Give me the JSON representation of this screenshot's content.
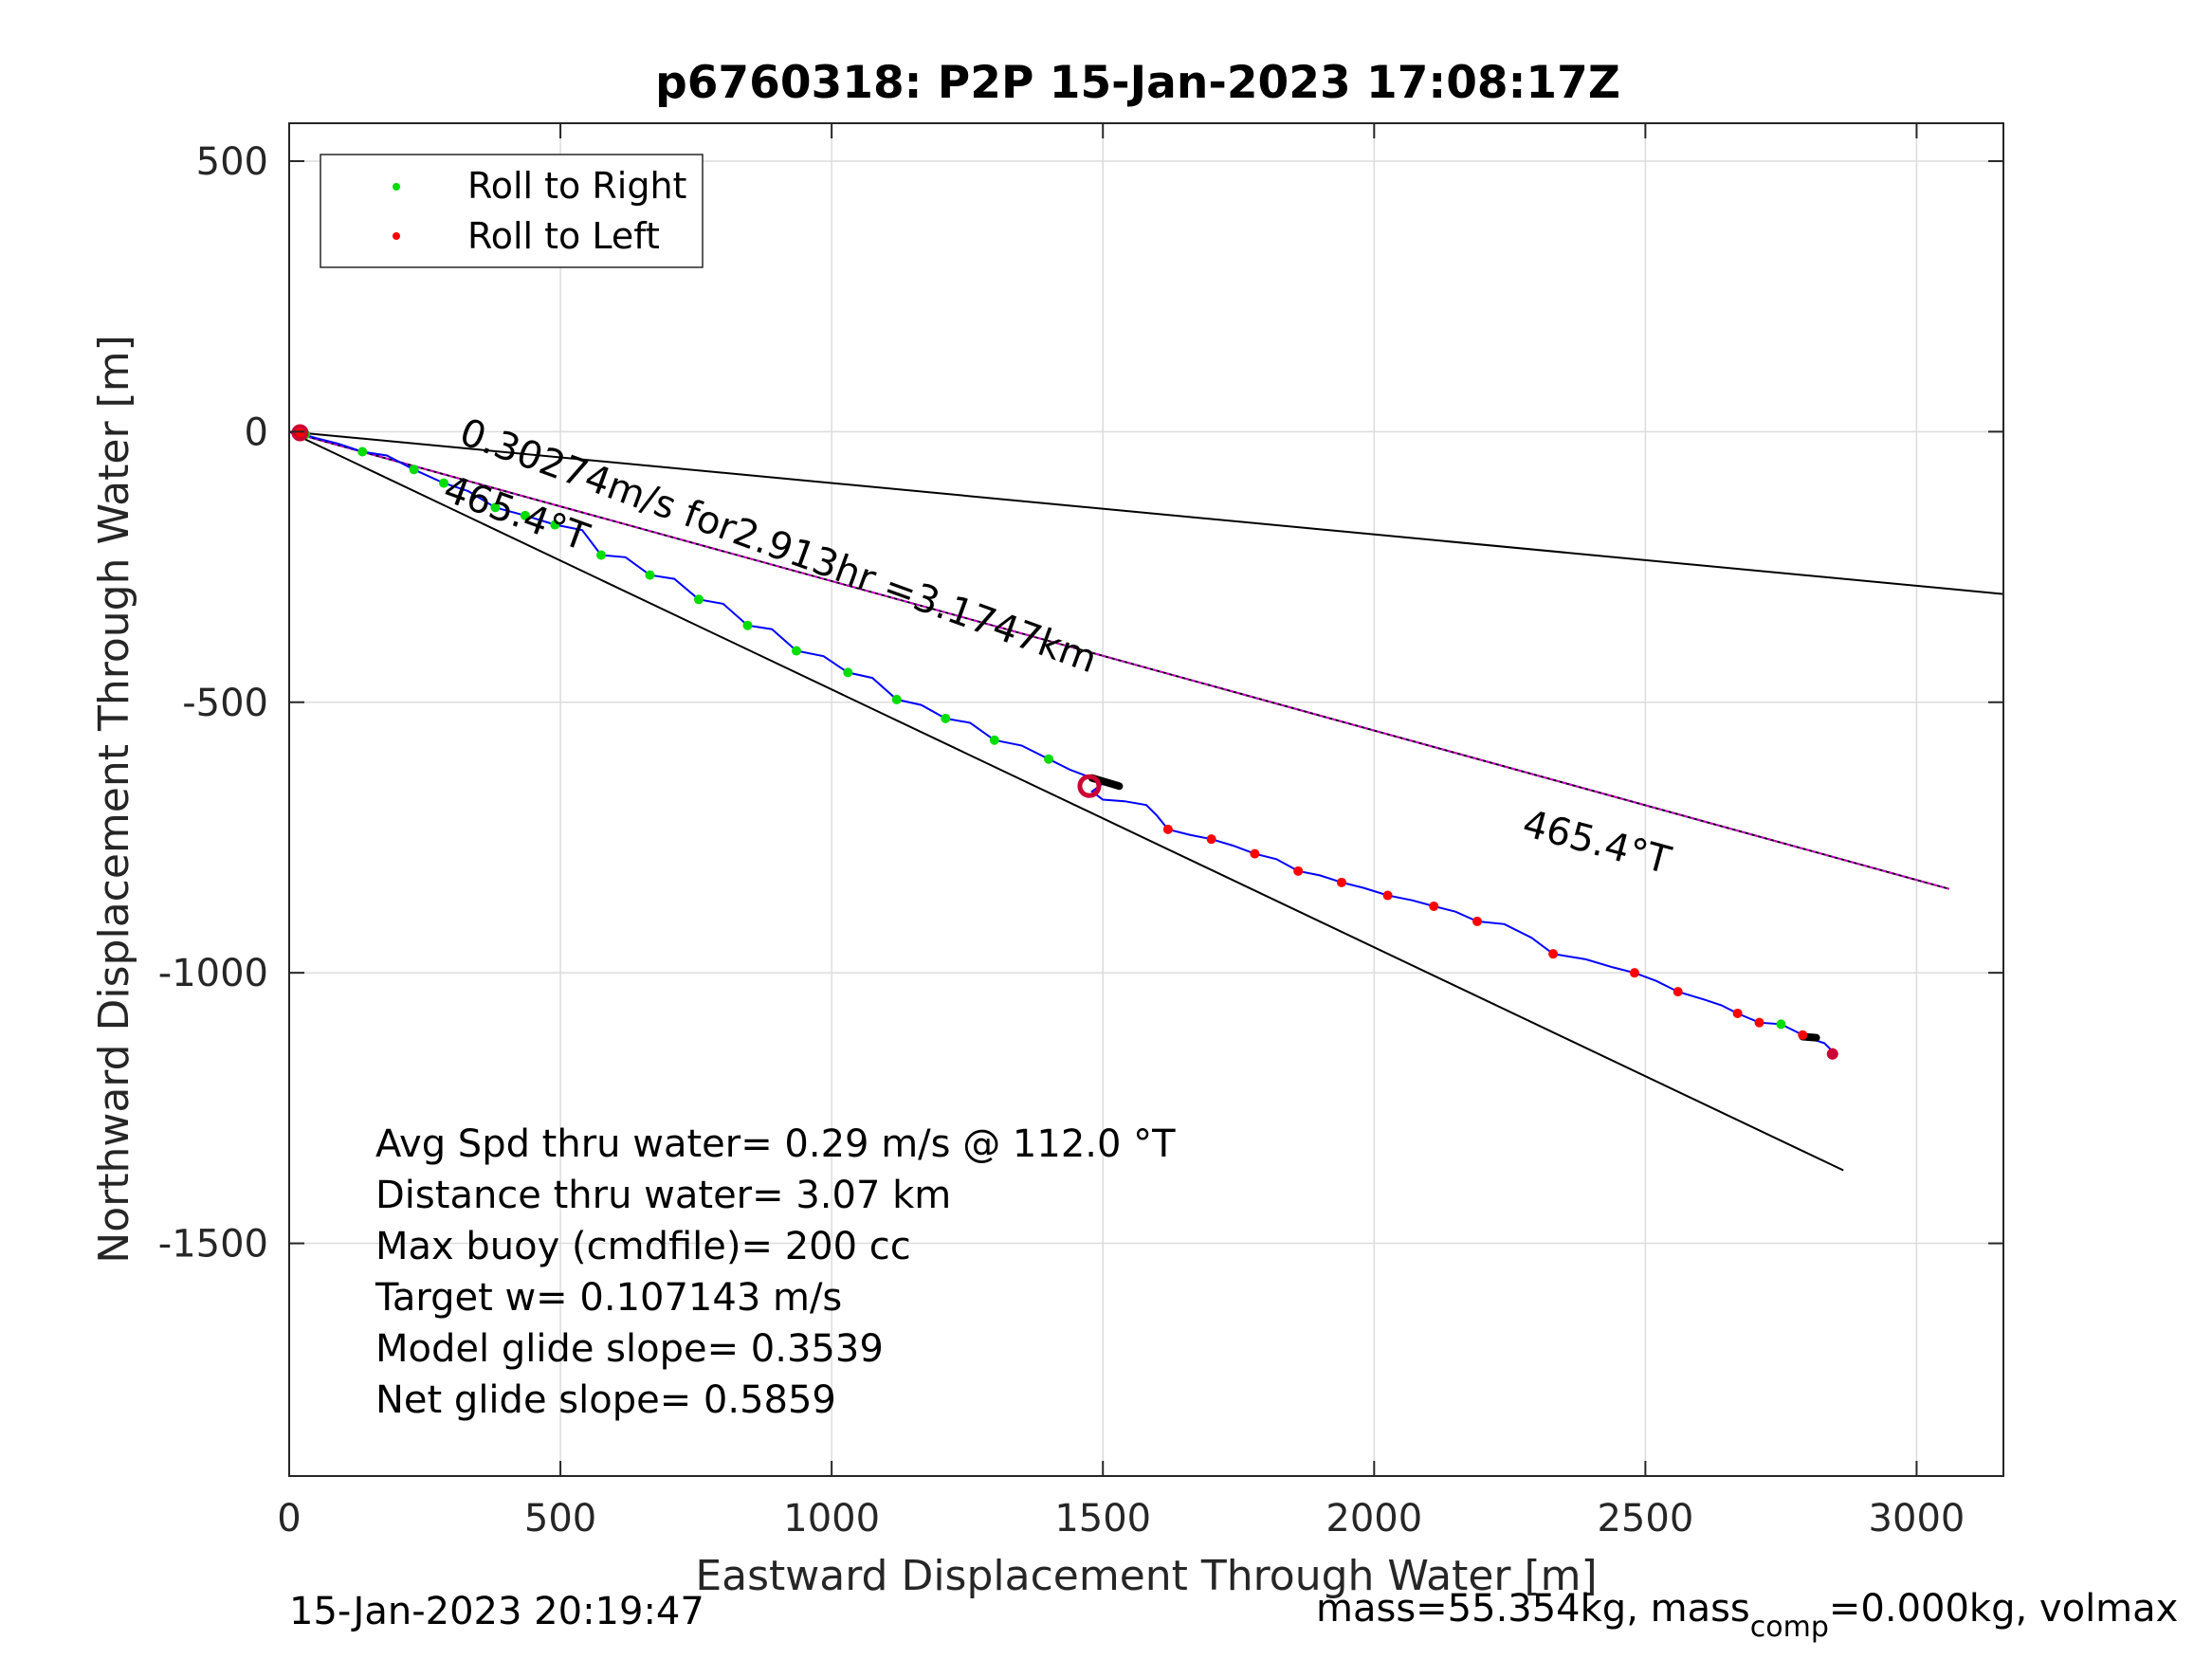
{
  "chart_data": {
    "type": "line",
    "title": "p6760318: P2P 15-Jan-2023 17:08:17Z",
    "xlabel": "Eastward Displacement Through Water [m]",
    "ylabel": "Northward Displacement Through Water [m]",
    "xlim": [
      0,
      3160
    ],
    "ylim": [
      -1930,
      570
    ],
    "xticks": [
      0,
      500,
      1000,
      1500,
      2000,
      2500,
      3000
    ],
    "xtick_labels": [
      "0",
      "500",
      "1000",
      "1500",
      "2000",
      "2500",
      "3000"
    ],
    "yticks": [
      500,
      0,
      -500,
      -1000,
      -1500
    ],
    "ytick_labels": [
      "500",
      "0",
      "-500",
      "-1000",
      "-1500"
    ],
    "grid": true,
    "legend_position": "top-left",
    "legend": [
      {
        "label": "Roll to Right",
        "color": "#00dd00"
      },
      {
        "label": "Roll to Left",
        "color": "#ff0000"
      }
    ],
    "colors": {
      "track": "#0000ff",
      "roll_right": "#00dd00",
      "roll_left": "#ff0000",
      "course_line": "#d000d0",
      "reference_lines": "#000000",
      "start_end_markers": "#cc0033",
      "gps_segments": "#000000"
    },
    "track": [
      [
        0,
        0
      ],
      [
        20,
        -3
      ],
      [
        50,
        -12
      ],
      [
        90,
        -22
      ],
      [
        135,
        -37
      ],
      [
        180,
        -44
      ],
      [
        230,
        -70
      ],
      [
        285,
        -95
      ],
      [
        330,
        -110
      ],
      [
        380,
        -140
      ],
      [
        435,
        -155
      ],
      [
        490,
        -172
      ],
      [
        540,
        -182
      ],
      [
        575,
        -228
      ],
      [
        620,
        -232
      ],
      [
        665,
        -265
      ],
      [
        710,
        -272
      ],
      [
        755,
        -310
      ],
      [
        800,
        -318
      ],
      [
        845,
        -358
      ],
      [
        890,
        -365
      ],
      [
        935,
        -405
      ],
      [
        985,
        -415
      ],
      [
        1030,
        -445
      ],
      [
        1075,
        -455
      ],
      [
        1120,
        -495
      ],
      [
        1165,
        -505
      ],
      [
        1210,
        -530
      ],
      [
        1255,
        -538
      ],
      [
        1300,
        -570
      ],
      [
        1350,
        -580
      ],
      [
        1400,
        -605
      ],
      [
        1440,
        -625
      ],
      [
        1480,
        -640
      ],
      [
        1500,
        -650
      ],
      [
        1480,
        -665
      ],
      [
        1500,
        -680
      ],
      [
        1540,
        -683
      ],
      [
        1580,
        -690
      ],
      [
        1600,
        -710
      ],
      [
        1620,
        -735
      ],
      [
        1660,
        -745
      ],
      [
        1700,
        -753
      ],
      [
        1740,
        -765
      ],
      [
        1780,
        -780
      ],
      [
        1820,
        -790
      ],
      [
        1860,
        -812
      ],
      [
        1900,
        -820
      ],
      [
        1940,
        -833
      ],
      [
        1980,
        -843
      ],
      [
        2025,
        -857
      ],
      [
        2070,
        -866
      ],
      [
        2110,
        -877
      ],
      [
        2150,
        -887
      ],
      [
        2190,
        -905
      ],
      [
        2240,
        -910
      ],
      [
        2290,
        -935
      ],
      [
        2330,
        -965
      ],
      [
        2390,
        -975
      ],
      [
        2440,
        -990
      ],
      [
        2480,
        -1000
      ],
      [
        2520,
        -1015
      ],
      [
        2560,
        -1035
      ],
      [
        2610,
        -1050
      ],
      [
        2640,
        -1060
      ],
      [
        2670,
        -1075
      ],
      [
        2710,
        -1092
      ],
      [
        2750,
        -1095
      ],
      [
        2780,
        -1110
      ],
      [
        2800,
        -1120
      ],
      [
        2830,
        -1130
      ],
      [
        2850,
        -1150
      ]
    ],
    "roll_right_points": [
      [
        30,
        -5
      ],
      [
        135,
        -37
      ],
      [
        230,
        -70
      ],
      [
        285,
        -95
      ],
      [
        380,
        -140
      ],
      [
        435,
        -155
      ],
      [
        490,
        -172
      ],
      [
        575,
        -228
      ],
      [
        665,
        -265
      ],
      [
        755,
        -310
      ],
      [
        845,
        -358
      ],
      [
        935,
        -405
      ],
      [
        1030,
        -445
      ],
      [
        1120,
        -495
      ],
      [
        1210,
        -530
      ],
      [
        1300,
        -570
      ],
      [
        1400,
        -605
      ],
      [
        2750,
        -1095
      ]
    ],
    "roll_left_points": [
      [
        20,
        -2
      ],
      [
        1620,
        -735
      ],
      [
        1700,
        -753
      ],
      [
        1780,
        -780
      ],
      [
        1860,
        -812
      ],
      [
        1940,
        -833
      ],
      [
        2025,
        -857
      ],
      [
        2110,
        -877
      ],
      [
        2190,
        -905
      ],
      [
        2330,
        -965
      ],
      [
        2480,
        -1000
      ],
      [
        2560,
        -1035
      ],
      [
        2670,
        -1075
      ],
      [
        2710,
        -1092
      ],
      [
        2790,
        -1115
      ],
      [
        2845,
        -1148
      ]
    ],
    "course_line": [
      [
        0,
        0
      ],
      [
        3060,
        -845
      ]
    ],
    "reference_line_upper": [
      [
        0,
        0
      ],
      [
        3160,
        -300
      ]
    ],
    "reference_line_lower": [
      [
        0,
        0
      ],
      [
        2865,
        -1365
      ]
    ],
    "gps_segments": [
      [
        [
          1480,
          -640
        ],
        [
          1530,
          -655
        ]
      ],
      [
        [
          2790,
          -1118
        ],
        [
          2815,
          -1120
        ]
      ]
    ],
    "start_marker": [
      20,
      -2
    ],
    "loiter_marker": [
      1475,
      -655
    ],
    "end_marker": [
      2845,
      -1150
    ],
    "annotations": [
      {
        "text": "0.30274m/s for2.913hr =3.1747km",
        "at": [
          310,
          -20
        ],
        "angle": 20
      },
      {
        "text": "465.4°T",
        "at": [
          280,
          -125
        ],
        "angle": 20
      },
      {
        "text": "465.4°T",
        "at": [
          2270,
          -745
        ],
        "angle": 15
      }
    ],
    "stats_lines": [
      "Avg Spd thru water=  0.29 m/s @ 112.0 °T",
      "Distance thru water=  3.07 km",
      "Max buoy (cmdfile)= 200 cc",
      "Target w= 0.107143 m/s",
      "Model glide slope= 0.3539",
      "Net glide slope= 0.5859"
    ]
  },
  "footer": {
    "date": "15-Jan-2023 20:19:47",
    "mass_text_a": "mass=55.354kg, mass",
    "mass_subscript": "comp",
    "mass_text_b": "=0.000kg, volmax"
  }
}
